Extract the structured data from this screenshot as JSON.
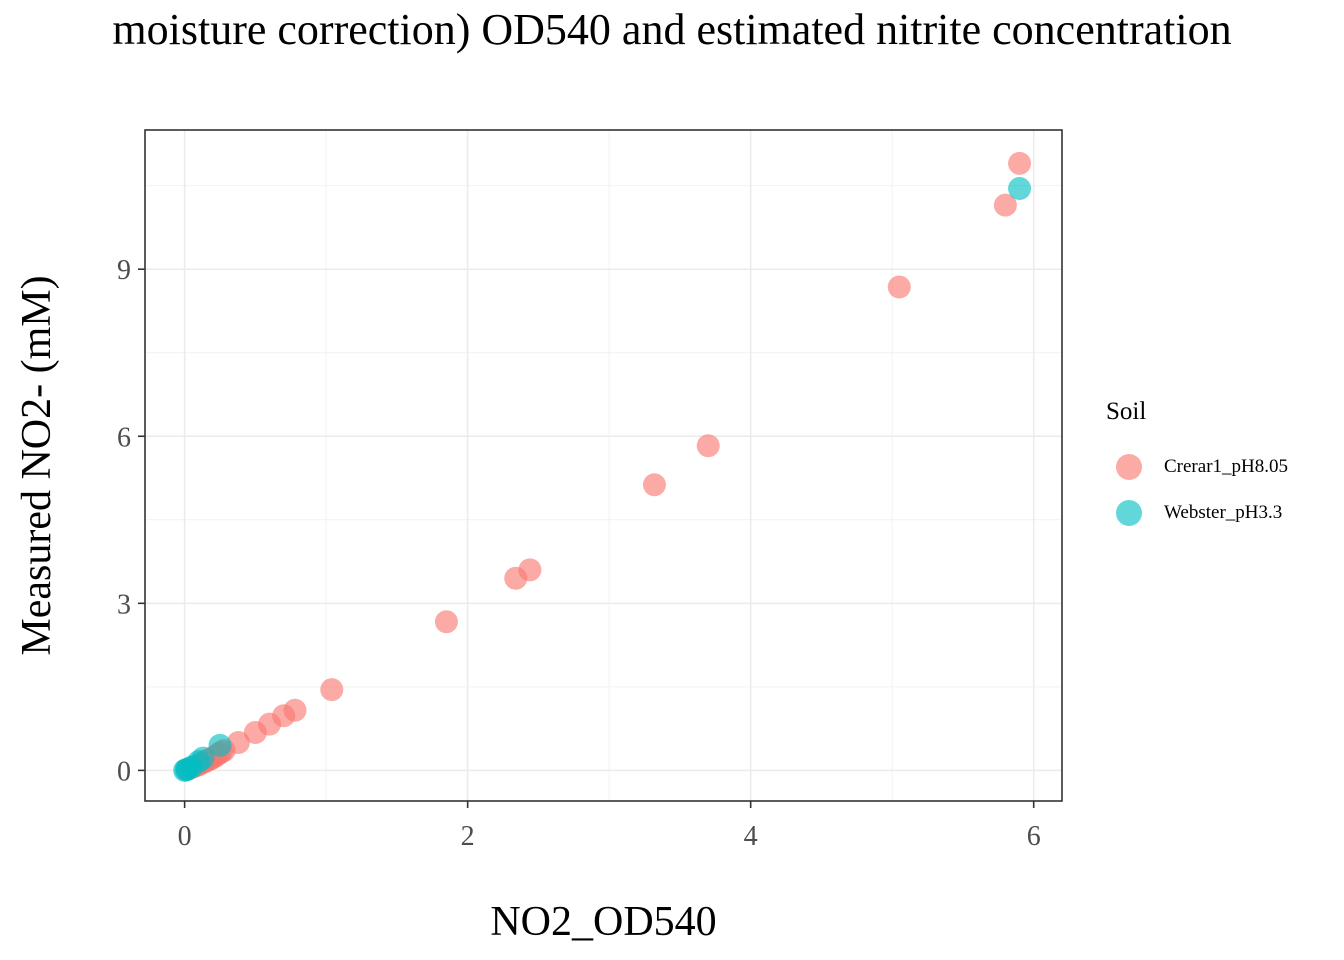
{
  "chart_data": {
    "type": "scatter",
    "title": "moisture correction) OD540 and estimated nitrite concentration",
    "xlabel": "NO2_OD540",
    "ylabel": "Measured NO2- (mM)",
    "xlim": [
      -0.28,
      6.2
    ],
    "ylim": [
      -0.55,
      11.5
    ],
    "x_ticks": [
      0,
      2,
      4,
      6
    ],
    "y_ticks": [
      0,
      3,
      6,
      9
    ],
    "grid": true,
    "legend": {
      "title": "Soil",
      "placement": "right",
      "entries": [
        "Crerar1_pH8.05",
        "Webster_pH3.3"
      ]
    },
    "series": [
      {
        "name": "Crerar1_pH8.05",
        "color": "#F8766D",
        "points": [
          [
            0.02,
            0.02
          ],
          [
            0.05,
            0.05
          ],
          [
            0.08,
            0.08
          ],
          [
            0.1,
            0.1
          ],
          [
            0.12,
            0.13
          ],
          [
            0.14,
            0.15
          ],
          [
            0.16,
            0.18
          ],
          [
            0.18,
            0.2
          ],
          [
            0.2,
            0.23
          ],
          [
            0.22,
            0.26
          ],
          [
            0.24,
            0.3
          ],
          [
            0.26,
            0.33
          ],
          [
            0.28,
            0.36
          ],
          [
            0.38,
            0.5
          ],
          [
            0.5,
            0.68
          ],
          [
            0.6,
            0.83
          ],
          [
            0.7,
            0.98
          ],
          [
            0.78,
            1.08
          ],
          [
            1.04,
            1.45
          ],
          [
            1.85,
            2.67
          ],
          [
            2.34,
            3.45
          ],
          [
            2.44,
            3.6
          ],
          [
            3.32,
            5.13
          ],
          [
            3.7,
            5.83
          ],
          [
            5.05,
            8.68
          ],
          [
            5.8,
            10.15
          ],
          [
            5.9,
            10.9
          ]
        ]
      },
      {
        "name": "Webster_pH3.3",
        "color": "#00BFC4",
        "points": [
          [
            0.0,
            0.0
          ],
          [
            0.01,
            0.01
          ],
          [
            0.02,
            0.02
          ],
          [
            0.05,
            0.06
          ],
          [
            0.1,
            0.16
          ],
          [
            0.13,
            0.22
          ],
          [
            0.25,
            0.45
          ],
          [
            5.9,
            10.45
          ]
        ]
      }
    ]
  }
}
